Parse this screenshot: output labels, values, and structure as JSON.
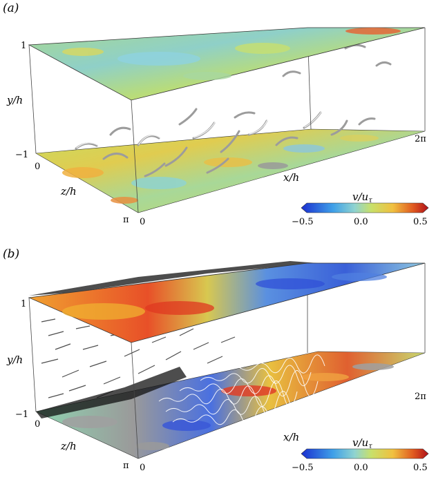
{
  "panels": [
    {
      "label": "(a)",
      "axes": {
        "y_label": "y/h",
        "x_label": "x/h",
        "z_label": "z/h",
        "y_ticks": [
          "1",
          "−1"
        ],
        "x_ticks": [
          "0",
          "2π"
        ],
        "z_ticks": [
          "0",
          "π"
        ]
      },
      "colorbar": {
        "title": "v/u",
        "title_sub": "τ",
        "tick_labels": [
          "−0.5",
          "0.0",
          "0.5"
        ],
        "range": [
          -0.5,
          0.5
        ]
      }
    },
    {
      "label": "(b)",
      "axes": {
        "y_label": "y/h",
        "x_label": "x/h",
        "z_label": "z/h",
        "y_ticks": [
          "1",
          "−1"
        ],
        "x_ticks": [
          "0",
          "2π"
        ],
        "z_ticks": [
          "0",
          "π"
        ]
      },
      "colorbar": {
        "title": "v/u",
        "title_sub": "τ",
        "tick_labels": [
          "−0.5",
          "0.0",
          "0.5"
        ],
        "range": [
          -0.5,
          0.5
        ]
      }
    }
  ],
  "colors": {
    "negative": "#2a3cd8",
    "zero": "#8fd3d0",
    "mid": "#c8e06a",
    "positive": "#d8281c",
    "isosurface": "#c9c9c9"
  }
}
